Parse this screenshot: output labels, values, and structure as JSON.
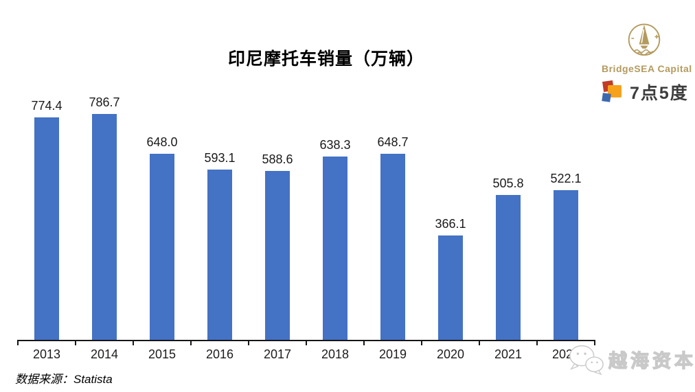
{
  "chart_data": {
    "type": "bar",
    "title": "印尼摩托车销量（万辆）",
    "categories": [
      "2013",
      "2014",
      "2015",
      "2016",
      "2017",
      "2018",
      "2019",
      "2020",
      "2021",
      "2022"
    ],
    "values": [
      774.4,
      786.7,
      648.0,
      593.1,
      588.6,
      638.3,
      648.7,
      366.1,
      505.8,
      522.1
    ],
    "value_labels": [
      "774.4",
      "786.7",
      "648.0",
      "593.1",
      "588.6",
      "638.3",
      "648.7",
      "366.1",
      "505.8",
      "522.1"
    ],
    "xlabel": "",
    "ylabel": "",
    "ylim": [
      0,
      800
    ],
    "grid": false,
    "legend": "none",
    "bar_color": "#4472C4",
    "label_color": "#1a1a1a",
    "axis_color": "#161616"
  },
  "source_note": "数据来源：Statista",
  "branding": {
    "bridgesea_name": "BridgeSEA Capital",
    "bridgesea_color": "#B49A5E",
    "seven_five_name": "7点5度",
    "seven_five_icon_colors": [
      "#C13B28",
      "#F7A21B",
      "#3C68B0"
    ]
  },
  "watermark_text": "越海资本"
}
